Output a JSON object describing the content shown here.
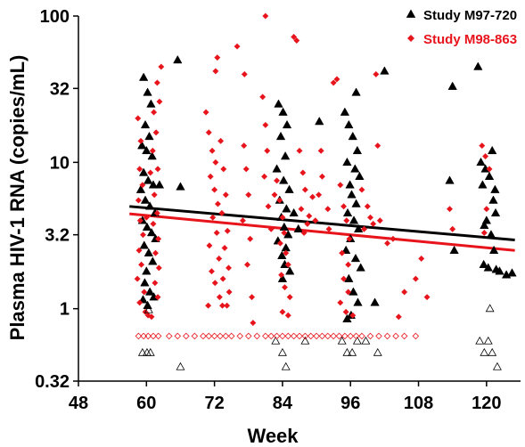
{
  "chart_data": {
    "type": "scatter",
    "title": "",
    "xlabel": "Week",
    "ylabel": "Plasma HIV-1 RNA (copies/mL)",
    "xlim": [
      48,
      126
    ],
    "ylim": [
      0.32,
      100
    ],
    "yscale": "log",
    "x_ticks": [
      48,
      60,
      72,
      84,
      96,
      108,
      120
    ],
    "x_tick_labels": [
      "48",
      "60",
      "72",
      "84",
      "96",
      "108",
      "120"
    ],
    "y_ticks": [
      0.32,
      1,
      3.2,
      10,
      32,
      100
    ],
    "y_tick_labels": [
      "0.32",
      "1",
      "3.2",
      "10",
      "32",
      "100"
    ],
    "grid": false,
    "legend_position": "top-right",
    "colors": {
      "m97": "#000000",
      "m98": "#e8141c"
    },
    "series": [
      {
        "name": "Study M97-720",
        "marker": "filled-triangle",
        "color": "#000000",
        "points": [
          [
            59.5,
            38
          ],
          [
            60.2,
            30
          ],
          [
            60.8,
            25
          ],
          [
            59.8,
            18
          ],
          [
            60.5,
            15
          ],
          [
            59.2,
            13
          ],
          [
            60.0,
            12
          ],
          [
            61.0,
            11
          ],
          [
            59.5,
            8.5
          ],
          [
            60.3,
            7.5
          ],
          [
            61.2,
            7
          ],
          [
            59.0,
            6.5
          ],
          [
            59.8,
            5.5
          ],
          [
            60.6,
            5
          ],
          [
            61.5,
            4.5
          ],
          [
            59.3,
            4
          ],
          [
            60.1,
            3.6
          ],
          [
            60.9,
            3.3
          ],
          [
            61.6,
            3.0
          ],
          [
            59.6,
            2.7
          ],
          [
            60.4,
            2.4
          ],
          [
            61.1,
            2.1
          ],
          [
            60.0,
            1.8
          ],
          [
            59.7,
            1.5
          ],
          [
            60.6,
            1.3
          ],
          [
            61.3,
            1.2
          ],
          [
            60.2,
            1.05
          ],
          [
            59.4,
            1.15
          ],
          [
            62.3,
            7.0
          ],
          [
            65.5,
            50
          ],
          [
            66.0,
            6.8
          ],
          [
            83.3,
            25
          ],
          [
            84.1,
            22
          ],
          [
            84.8,
            18
          ],
          [
            83.7,
            15
          ],
          [
            84.5,
            11
          ],
          [
            83.0,
            9
          ],
          [
            84.2,
            7.5
          ],
          [
            85.2,
            6.5
          ],
          [
            83.5,
            5.5
          ],
          [
            84.7,
            4.8
          ],
          [
            83.8,
            4.2
          ],
          [
            84.3,
            3.6
          ],
          [
            85.0,
            3.2
          ],
          [
            83.2,
            2.9
          ],
          [
            84.6,
            2.6
          ],
          [
            83.9,
            2.3
          ],
          [
            84.4,
            2.0
          ],
          [
            85.3,
            1.8
          ],
          [
            84.0,
            1.6
          ],
          [
            86.0,
            4.5
          ],
          [
            86.8,
            3.5
          ],
          [
            90.5,
            19
          ],
          [
            95.0,
            22
          ],
          [
            95.7,
            18
          ],
          [
            96.4,
            15
          ],
          [
            97.2,
            12
          ],
          [
            95.4,
            10
          ],
          [
            96.8,
            9
          ],
          [
            97.6,
            8
          ],
          [
            95.9,
            7
          ],
          [
            96.2,
            6
          ],
          [
            97.0,
            5.2
          ],
          [
            95.5,
            4.5
          ],
          [
            96.6,
            4.0
          ],
          [
            97.4,
            3.5
          ],
          [
            96.0,
            3.0
          ],
          [
            95.2,
            2.5
          ],
          [
            96.9,
            2.2
          ],
          [
            97.8,
            1.9
          ],
          [
            95.7,
            1.6
          ],
          [
            96.5,
            1.3
          ],
          [
            97.3,
            1.1
          ],
          [
            96.1,
            0.9
          ],
          [
            95.4,
            0.85
          ],
          [
            97.0,
            30
          ],
          [
            100.3,
            1.1
          ],
          [
            102.0,
            42
          ],
          [
            113.5,
            7.5
          ],
          [
            114.0,
            33
          ],
          [
            114.3,
            2.5
          ],
          [
            118.5,
            45
          ],
          [
            119.0,
            10
          ],
          [
            119.8,
            9
          ],
          [
            120.5,
            8
          ],
          [
            119.3,
            7
          ],
          [
            121.0,
            12
          ],
          [
            121.5,
            6.5
          ],
          [
            121.2,
            5.5
          ],
          [
            121.6,
            4.5
          ],
          [
            120.0,
            4.0
          ],
          [
            119.6,
            3.7
          ],
          [
            120.8,
            3.2
          ],
          [
            121.3,
            2.5
          ],
          [
            119.5,
            2.0
          ],
          [
            120.3,
            1.9
          ],
          [
            121.7,
            1.85
          ],
          [
            122.3,
            1.8
          ],
          [
            123.5,
            1.7
          ],
          [
            124.5,
            1.75
          ]
        ]
      },
      {
        "name": "Study M98-863",
        "marker": "filled-diamond",
        "color": "#e8141c",
        "points": [
          [
            58.5,
            20
          ],
          [
            59.0,
            14
          ],
          [
            58.8,
            9
          ],
          [
            59.3,
            7
          ],
          [
            58.6,
            5.5
          ],
          [
            58.9,
            4
          ],
          [
            59.4,
            3.2
          ],
          [
            58.7,
            2.5
          ],
          [
            59.1,
            2.0
          ],
          [
            58.4,
            1.6
          ],
          [
            59.6,
            1.3
          ],
          [
            58.8,
            1.1
          ],
          [
            59.8,
            0.95
          ],
          [
            60.3,
            0.9
          ],
          [
            60.9,
            0.88
          ],
          [
            61.3,
            22
          ],
          [
            61.7,
            16
          ],
          [
            61.1,
            12
          ],
          [
            62.0,
            9
          ],
          [
            61.4,
            6
          ],
          [
            61.9,
            4.5
          ],
          [
            61.2,
            3.8
          ],
          [
            62.1,
            3.0
          ],
          [
            61.6,
            2.4
          ],
          [
            62.2,
            1.9
          ],
          [
            61.5,
            1.5
          ],
          [
            62.0,
            1.2
          ],
          [
            62.6,
            45
          ],
          [
            61.9,
            35
          ],
          [
            62.3,
            26
          ],
          [
            60.7,
            8.5
          ],
          [
            60.0,
            4.2
          ],
          [
            70.5,
            22
          ],
          [
            71.0,
            16
          ],
          [
            71.6,
            12
          ],
          [
            72.2,
            10
          ],
          [
            71.3,
            8
          ],
          [
            72.0,
            6.5
          ],
          [
            72.6,
            5.2
          ],
          [
            71.7,
            4.2
          ],
          [
            72.4,
            3.3
          ],
          [
            71.1,
            2.7
          ],
          [
            72.8,
            2.2
          ],
          [
            71.5,
            1.8
          ],
          [
            72.1,
            1.5
          ],
          [
            72.9,
            1.2
          ],
          [
            70.9,
            1.05
          ],
          [
            73.4,
            1.05
          ],
          [
            73.1,
            14
          ],
          [
            73.6,
            9
          ],
          [
            74.0,
            6
          ],
          [
            73.3,
            4.5
          ],
          [
            74.3,
            3.4
          ],
          [
            73.8,
            2.6
          ],
          [
            74.5,
            1.9
          ],
          [
            73.5,
            1.6
          ],
          [
            74.6,
            1.3
          ],
          [
            74.2,
            1.05
          ],
          [
            72.5,
            52
          ],
          [
            72.2,
            42
          ],
          [
            76.0,
            62
          ],
          [
            77.2,
            13
          ],
          [
            77.6,
            9
          ],
          [
            78.0,
            6
          ],
          [
            77.0,
            4
          ],
          [
            78.3,
            3
          ],
          [
            77.8,
            2
          ],
          [
            78.6,
            1.2
          ],
          [
            78.8,
            0.8
          ],
          [
            77.3,
            40
          ],
          [
            81.0,
            100
          ],
          [
            80.5,
            28
          ],
          [
            81.0,
            18
          ],
          [
            81.3,
            12
          ],
          [
            80.8,
            8
          ],
          [
            81.5,
            5
          ],
          [
            82.0,
            3.5
          ],
          [
            82.6,
            6
          ],
          [
            83.0,
            7.5
          ],
          [
            83.5,
            5.5
          ],
          [
            84.0,
            4.2
          ],
          [
            84.3,
            3.3
          ],
          [
            83.6,
            2.8
          ],
          [
            84.6,
            2.4
          ],
          [
            85.0,
            2.0
          ],
          [
            83.8,
            1.7
          ],
          [
            84.4,
            1.4
          ],
          [
            85.3,
            1.2
          ],
          [
            84.0,
            0.95
          ],
          [
            85.0,
            0.9
          ],
          [
            86.5,
            68
          ],
          [
            86.0,
            72
          ],
          [
            87.0,
            12
          ],
          [
            87.6,
            8.5
          ],
          [
            88.0,
            6.5
          ],
          [
            87.3,
            4.8
          ],
          [
            88.4,
            3.8
          ],
          [
            87.8,
            3.3
          ],
          [
            88.7,
            4.3
          ],
          [
            89.3,
            5.8
          ],
          [
            89.8,
            4.0
          ],
          [
            90.4,
            6
          ],
          [
            91.0,
            8
          ],
          [
            90.8,
            12
          ],
          [
            92.0,
            4.8
          ],
          [
            92.2,
            3.5
          ],
          [
            93.0,
            35
          ],
          [
            93.6,
            37
          ],
          [
            94.2,
            7
          ],
          [
            94.8,
            5
          ],
          [
            95.3,
            4
          ],
          [
            95.8,
            3
          ],
          [
            94.5,
            2.4
          ],
          [
            95.6,
            2.0
          ],
          [
            94.8,
            1.6
          ],
          [
            95.6,
            1.3
          ],
          [
            94.2,
            1.1
          ],
          [
            95.2,
            0.95
          ],
          [
            96.4,
            0.9
          ],
          [
            98.0,
            6.5
          ],
          [
            98.4,
            3.5
          ],
          [
            99.0,
            5
          ],
          [
            99.5,
            4.2
          ],
          [
            100.0,
            3.8
          ],
          [
            100.5,
            40
          ],
          [
            100.8,
            13
          ],
          [
            101.2,
            4
          ],
          [
            102.5,
            2.8
          ],
          [
            103.5,
            3.0
          ],
          [
            104.5,
            0.88
          ],
          [
            105.5,
            1.3
          ],
          [
            107.5,
            1.6
          ],
          [
            108.5,
            2.2
          ],
          [
            109.5,
            1.2
          ],
          [
            113.5,
            4.8
          ],
          [
            114.0,
            3.5
          ],
          [
            119.2,
            13
          ],
          [
            119.8,
            11
          ],
          [
            120.5,
            9
          ],
          [
            120.0,
            4.8
          ],
          [
            119.6,
            3.3
          ]
        ]
      },
      {
        "name": "",
        "marker": "open-triangle",
        "color": "#000000",
        "points": [
          [
            59.3,
            0.5
          ],
          [
            60.1,
            0.5
          ],
          [
            60.7,
            0.5
          ],
          [
            66.0,
            0.4
          ],
          [
            60.4,
            0.98
          ],
          [
            82.8,
            0.6
          ],
          [
            84.0,
            0.5
          ],
          [
            84.6,
            0.4
          ],
          [
            88.0,
            0.6
          ],
          [
            94.5,
            0.6
          ],
          [
            95.4,
            0.5
          ],
          [
            96.3,
            0.5
          ],
          [
            97.2,
            0.6
          ],
          [
            98.7,
            0.6
          ],
          [
            100.8,
            0.5
          ],
          [
            118.8,
            0.6
          ],
          [
            119.6,
            0.5
          ],
          [
            120.3,
            0.6
          ],
          [
            121.0,
            0.5
          ],
          [
            121.9,
            0.4
          ],
          [
            120.6,
            1.0
          ]
        ]
      },
      {
        "name": "",
        "marker": "open-diamond",
        "color": "#e8141c",
        "points": [
          [
            58.6,
            0.65
          ],
          [
            59.5,
            0.65
          ],
          [
            60.3,
            0.65
          ],
          [
            61.2,
            0.65
          ],
          [
            62.1,
            0.65
          ],
          [
            64.0,
            0.65
          ],
          [
            65.5,
            0.65
          ],
          [
            67.0,
            0.65
          ],
          [
            68.5,
            0.65
          ],
          [
            70.0,
            0.65
          ],
          [
            71.0,
            0.65
          ],
          [
            72.0,
            0.65
          ],
          [
            73.0,
            0.65
          ],
          [
            74.0,
            0.65
          ],
          [
            75.0,
            0.65
          ],
          [
            76.5,
            0.65
          ],
          [
            78.0,
            0.65
          ],
          [
            79.5,
            0.65
          ],
          [
            81.0,
            0.65
          ],
          [
            82.0,
            0.65
          ],
          [
            83.0,
            0.65
          ],
          [
            84.0,
            0.65
          ],
          [
            85.0,
            0.65
          ],
          [
            86.0,
            0.65
          ],
          [
            87.0,
            0.65
          ],
          [
            88.0,
            0.65
          ],
          [
            89.0,
            0.65
          ],
          [
            90.0,
            0.65
          ],
          [
            91.0,
            0.65
          ],
          [
            92.0,
            0.65
          ],
          [
            93.0,
            0.65
          ],
          [
            94.0,
            0.65
          ],
          [
            95.0,
            0.65
          ],
          [
            96.0,
            0.65
          ],
          [
            97.0,
            0.65
          ],
          [
            98.0,
            0.65
          ],
          [
            99.5,
            0.65
          ],
          [
            101.0,
            0.65
          ],
          [
            102.5,
            0.65
          ],
          [
            104.0,
            0.65
          ],
          [
            105.5,
            0.65
          ],
          [
            107.5,
            0.65
          ]
        ]
      }
    ],
    "trend_lines": [
      {
        "series": "Study M97-720",
        "color": "#000000",
        "x": [
          57,
          125
        ],
        "y": [
          5.0,
          2.95
        ]
      },
      {
        "series": "Study M98-863",
        "color": "#e8141c",
        "x": [
          57,
          125
        ],
        "y": [
          4.45,
          2.5
        ]
      }
    ]
  }
}
